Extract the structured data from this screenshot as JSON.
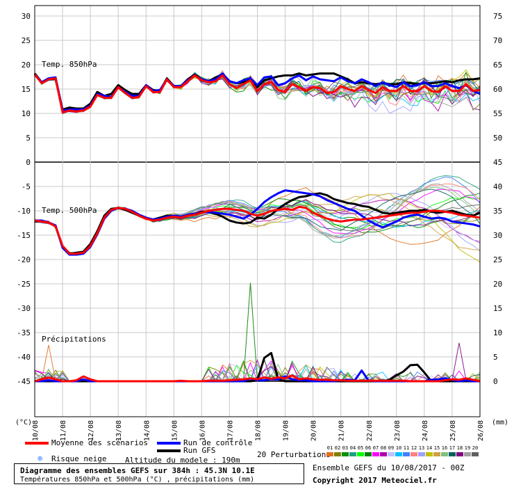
{
  "chart_data": {
    "type": "line",
    "title": "Diagramme des ensembles GEFS sur 384h : 45.3N 10.1E",
    "subtitle": "Températures 850hPa et 500hPa (°C) , précipitations (mm)",
    "x_tick_labels": [
      "10/08",
      "11/08",
      "12/08",
      "13/08",
      "14/08",
      "15/08",
      "16/08",
      "17/08",
      "18/08",
      "19/08",
      "20/08",
      "21/08",
      "22/08",
      "23/08",
      "24/08",
      "25/08",
      "26/08"
    ],
    "xlabel": "",
    "ylabel_left": "(°C)",
    "ylabel_right": "(mm)",
    "y_left_ticks": [
      30,
      25,
      20,
      15,
      10,
      5,
      0,
      -5,
      -10,
      -15,
      -20,
      -25,
      -30,
      -35,
      -40,
      -45
    ],
    "y_right_ticks": [
      75,
      70,
      65,
      60,
      55,
      50,
      45,
      40,
      35,
      30,
      25,
      20,
      15,
      10,
      5,
      0
    ],
    "panels": {
      "t850": {
        "label": "Temp. 850hPa",
        "ylim": [
          0,
          30
        ],
        "x_hours": [
          0,
          6,
          12,
          18,
          24,
          30,
          36,
          42,
          48,
          54,
          60,
          66,
          72,
          78,
          84,
          90,
          96,
          102,
          108,
          114,
          120,
          126,
          132,
          138,
          144,
          150,
          156,
          162,
          168,
          174,
          180,
          186,
          192,
          198,
          204,
          210,
          216,
          222,
          228,
          234,
          240,
          246,
          252,
          258,
          264,
          270,
          276,
          282,
          288,
          294,
          300,
          306,
          312,
          318,
          324,
          330,
          336,
          342,
          348,
          354,
          360,
          366,
          372,
          378,
          384
        ],
        "series": [
          {
            "name": "Moyenne des scénarios",
            "color": "#ff0000",
            "values": [
              18,
              16.2,
              17,
              17.2,
              10.2,
              10.6,
              10.4,
              10.6,
              11.4,
              13.8,
              13.2,
              13.2,
              15.4,
              14.2,
              13.2,
              13.4,
              15.6,
              14.4,
              14.4,
              17,
              15.4,
              15.4,
              16.6,
              17.8,
              16.8,
              16.4,
              16.6,
              17.8,
              16,
              15.2,
              16,
              16.8,
              14.6,
              16,
              16.4,
              14.8,
              14.4,
              16,
              15.4,
              14.6,
              15.4,
              15.2,
              14.2,
              14.4,
              15.6,
              15,
              14.6,
              15.6,
              14.8,
              14.2,
              15.4,
              14.6,
              14.6,
              15.6,
              14.6,
              14.6,
              15.6,
              14.6,
              14.4,
              15.6,
              14.6,
              14.6,
              16,
              14.6,
              14.8
            ]
          },
          {
            "name": "Run de contrôle",
            "color": "#0000ff",
            "values": [
              18,
              16.4,
              17.2,
              17.4,
              10.6,
              10.8,
              10.8,
              10.8,
              11.6,
              14,
              13.6,
              13.4,
              15.4,
              14.4,
              13.6,
              13.6,
              15.8,
              14.6,
              14.8,
              17,
              15.6,
              15.6,
              16.8,
              17.8,
              17,
              16.6,
              17,
              18.2,
              16.6,
              16.2,
              16.8,
              17.2,
              15.8,
              17.4,
              17.6,
              15.8,
              16.2,
              17.2,
              17.8,
              16.8,
              17.6,
              17,
              16.8,
              16.6,
              17.4,
              16.6,
              16.2,
              17,
              16.4,
              15.6,
              16.4,
              15.8,
              15.4,
              16.4,
              15.6,
              15.8,
              16.4,
              15.6,
              15.6,
              16.2,
              15.6,
              15.2,
              15.8,
              14.6,
              14
            ]
          },
          {
            "name": "Run GFS",
            "color": "#000000",
            "values": [
              18.2,
              16.4,
              17,
              17,
              10.8,
              11.2,
              11,
              11,
              12,
              14.4,
              13.6,
              14,
              15.8,
              14.8,
              14,
              14,
              15.8,
              14.8,
              14.6,
              17.2,
              15.6,
              15.6,
              17,
              18,
              17,
              16.6,
              17.4,
              18,
              16.6,
              16.2,
              16.4,
              16.8,
              15.4,
              16.8,
              17.2,
              17.6,
              17.8,
              17.8,
              18.2,
              17.8,
              18,
              18.2,
              18.2,
              18.2,
              17.6,
              17,
              16.2,
              16.4,
              16.2,
              16,
              16.2,
              16,
              16,
              16.4,
              16.2,
              16,
              16.2,
              16.2,
              16.4,
              16.6,
              16.4,
              16.8,
              17,
              17,
              17.2
            ]
          }
        ]
      },
      "t500": {
        "label": "Temp. 500hPa",
        "ylim": [
          -25,
          0
        ],
        "series": [
          {
            "name": "Moyenne des scénarios",
            "color": "#ff0000",
            "values": [
              -12,
              -12.2,
              -12.4,
              -13.2,
              -17.2,
              -18.8,
              -18.8,
              -18.6,
              -17.2,
              -14.6,
              -11.4,
              -9.8,
              -9.4,
              -9.6,
              -10.2,
              -11,
              -11.6,
              -12,
              -11.8,
              -11.4,
              -11.2,
              -11.4,
              -11,
              -10.8,
              -10.4,
              -10,
              -9.8,
              -9.6,
              -9.6,
              -9.8,
              -10,
              -10.6,
              -11,
              -10.6,
              -10,
              -9.8,
              -9.6,
              -9.8,
              -9.2,
              -9.4,
              -10.4,
              -11,
              -11.6,
              -12,
              -12.2,
              -12,
              -11.8,
              -11.8,
              -11.6,
              -11.4,
              -11.2,
              -11,
              -10.8,
              -10.6,
              -10.4,
              -10.4,
              -10.2,
              -10,
              -10,
              -10.2,
              -10.4,
              -10.8,
              -11,
              -11.2,
              -11.4
            ]
          },
          {
            "name": "Run de contrôle",
            "color": "#0000ff",
            "values": [
              -12,
              -12,
              -12.4,
              -13,
              -17.6,
              -19,
              -19,
              -18.8,
              -17.4,
              -14.8,
              -11.6,
              -10,
              -9.4,
              -9.6,
              -10,
              -10.8,
              -11.4,
              -11.8,
              -11.6,
              -11.2,
              -11,
              -11.2,
              -10.8,
              -10.6,
              -10.4,
              -10.2,
              -10.4,
              -10.6,
              -10.8,
              -11.2,
              -11.6,
              -10.8,
              -9.6,
              -8.2,
              -7.2,
              -6.4,
              -5.8,
              -6,
              -6.2,
              -6.4,
              -6.6,
              -7,
              -7.8,
              -8.4,
              -9,
              -9.6,
              -10,
              -11,
              -12,
              -12.8,
              -13.4,
              -12.8,
              -12.2,
              -11.4,
              -11,
              -10.8,
              -11.2,
              -11.6,
              -11.4,
              -11.6,
              -12.2,
              -12.4,
              -12.6,
              -12.8,
              -13.2
            ]
          },
          {
            "name": "Run GFS",
            "color": "#000000",
            "values": [
              -12.2,
              -12.2,
              -12.4,
              -13.2,
              -17.4,
              -18.8,
              -18.6,
              -18.4,
              -16.8,
              -14.2,
              -11,
              -9.6,
              -9.4,
              -9.8,
              -10.4,
              -11,
              -11.6,
              -11.8,
              -11.4,
              -11,
              -11,
              -11.2,
              -10.8,
              -10.6,
              -10.2,
              -10.2,
              -10.6,
              -11.2,
              -12,
              -12.4,
              -12.6,
              -12.4,
              -11.4,
              -11.6,
              -10.8,
              -9.6,
              -8.6,
              -7.8,
              -7.2,
              -7,
              -6.6,
              -6.4,
              -6.8,
              -7.6,
              -8,
              -8.4,
              -8.6,
              -9,
              -9.2,
              -9.8,
              -10.4,
              -10.6,
              -10.4,
              -10.2,
              -10,
              -10,
              -9.8,
              -10.2,
              -10.4,
              -10.2,
              -10,
              -10.4,
              -10.8,
              -11,
              -10.4
            ]
          }
        ]
      },
      "precip": {
        "label": "Précipitations",
        "ylim": [
          0,
          25
        ],
        "series": [
          {
            "name": "Moyenne des scénarios",
            "color": "#ff0000",
            "values": [
              0,
              0.4,
              0.8,
              0.4,
              0,
              0,
              0.2,
              1,
              0.4,
              0,
              0,
              0,
              0,
              0,
              0,
              0,
              0,
              0,
              0,
              0,
              0,
              0.1,
              0,
              0,
              0,
              0.1,
              0.1,
              0.1,
              0.2,
              0.3,
              0.4,
              0.6,
              0.4,
              0.8,
              0.5,
              0.8,
              0.6,
              1.2,
              0.4,
              0.6,
              0.4,
              0.3,
              0.3,
              0.2,
              0.2,
              0.1,
              0.1,
              0.1,
              0.1,
              0.1,
              0.1,
              0.1,
              0.1,
              0.1,
              0,
              0,
              0,
              0,
              0,
              0.2,
              0.4,
              0.3,
              0.6,
              0.3,
              0
            ]
          },
          {
            "name": "Run de contrôle",
            "color": "#0000ff",
            "values": [
              0,
              0,
              0.2,
              0,
              0,
              0,
              0,
              0.4,
              0,
              0,
              0,
              0,
              0,
              0,
              0,
              0,
              0,
              0,
              0,
              0,
              0,
              0,
              0,
              0,
              0,
              0,
              0,
              0,
              0,
              0,
              0,
              0.6,
              0.2,
              0.2,
              0.4,
              0.4,
              1,
              0.4,
              0.2,
              0.2,
              0,
              0,
              0,
              0,
              0.2,
              0.3,
              0.2,
              2.2,
              0.1,
              0,
              0,
              0,
              0,
              0,
              0,
              0,
              0,
              0.3,
              0.4,
              0.6,
              0.3,
              0,
              0.2,
              0,
              0
            ]
          },
          {
            "name": "Run GFS",
            "color": "#000000",
            "values": [
              0,
              0,
              0,
              0,
              0,
              0,
              0,
              0,
              0,
              0,
              0,
              0,
              0,
              0,
              0,
              0,
              0,
              0,
              0,
              0,
              0,
              0,
              0,
              0,
              0,
              0,
              0,
              0,
              0,
              0,
              0,
              0,
              0.2,
              4.8,
              5.8,
              0.4,
              0,
              0,
              0,
              0,
              0,
              0,
              0,
              0,
              0,
              0,
              0,
              0,
              0,
              0,
              0,
              0.3,
              1.2,
              2,
              3.3,
              3.4,
              1.8,
              0,
              0,
              0,
              0,
              0,
              0,
              0,
              0
            ]
          }
        ]
      }
    },
    "perturbations": {
      "label": "20 Perturbations",
      "members": [
        {
          "id": "01",
          "color": "#e07020"
        },
        {
          "id": "02",
          "color": "#808000"
        },
        {
          "id": "03",
          "color": "#009000"
        },
        {
          "id": "04",
          "color": "#20a080"
        },
        {
          "id": "05",
          "color": "#00ff00"
        },
        {
          "id": "06",
          "color": "#008000"
        },
        {
          "id": "07",
          "color": "#ff00ff"
        },
        {
          "id": "08",
          "color": "#b000b0"
        },
        {
          "id": "09",
          "color": "#c0c0ff"
        },
        {
          "id": "10",
          "color": "#00c0ff"
        },
        {
          "id": "11",
          "color": "#4080ff"
        },
        {
          "id": "12",
          "color": "#ff8080"
        },
        {
          "id": "13",
          "color": "#a0a0ff"
        },
        {
          "id": "14",
          "color": "#c0c000"
        },
        {
          "id": "15",
          "color": "#d0a040"
        },
        {
          "id": "16",
          "color": "#80c080"
        },
        {
          "id": "17",
          "color": "#006060"
        },
        {
          "id": "18",
          "color": "#800080"
        },
        {
          "id": "19",
          "color": "#a0a0a0"
        },
        {
          "id": "20",
          "color": "#606060"
        }
      ]
    },
    "legend": {
      "mean": "Moyenne des scénarios",
      "control": "Run de contrôle",
      "gfs": "Run GFS",
      "snow": "Risque neige",
      "altitude": "Altitude du modele : 190m"
    }
  },
  "footer": {
    "run_info": "Ensemble GEFS du 10/08/2017 - 00Z",
    "copyright": "Copyright 2017 Meteociel.fr"
  }
}
